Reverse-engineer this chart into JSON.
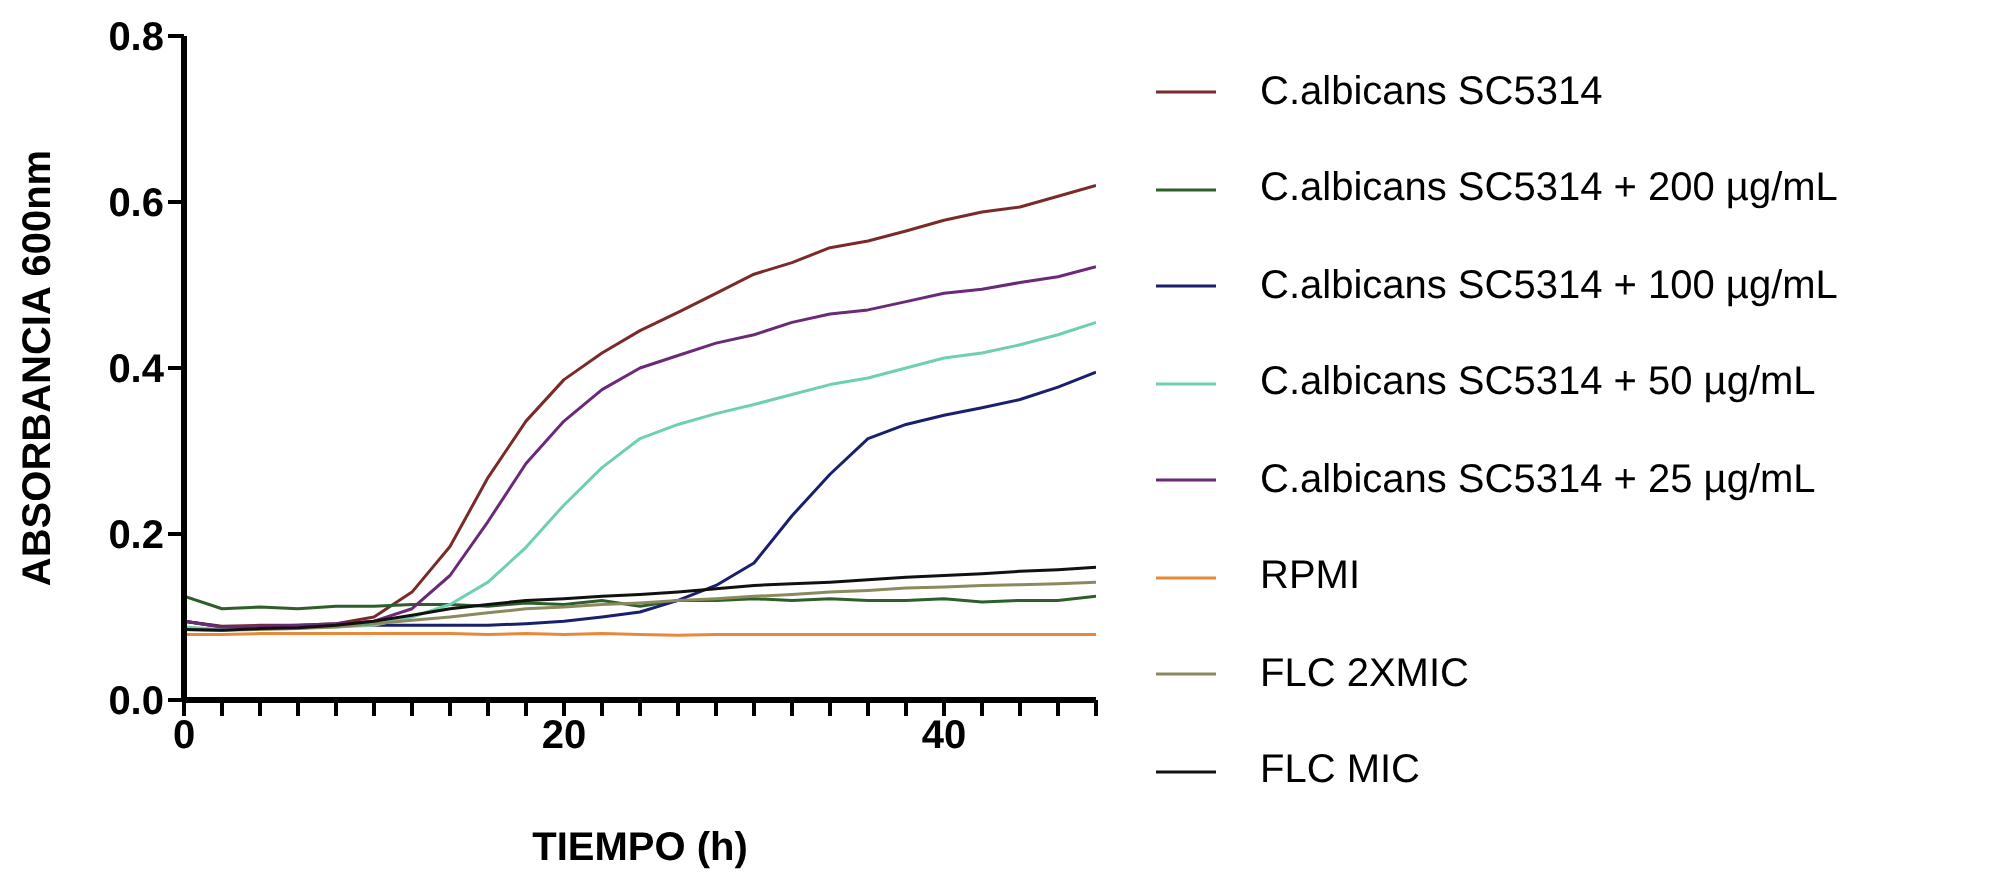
{
  "chart_data": {
    "type": "line",
    "xlabel": "TIEMPO (h)",
    "ylabel": "ABSORBANCIA 600nm",
    "x": [
      0,
      2,
      4,
      6,
      8,
      10,
      12,
      14,
      16,
      18,
      20,
      22,
      24,
      26,
      28,
      30,
      32,
      34,
      36,
      38,
      40,
      42,
      44,
      46,
      48
    ],
    "xlim": [
      0,
      48
    ],
    "ylim": [
      0,
      0.8
    ],
    "xticks": [
      0,
      {
        "value": 2,
        "label": null
      },
      {
        "value": 4,
        "label": null
      },
      {
        "value": 6,
        "label": null
      },
      {
        "value": 8,
        "label": null
      },
      {
        "value": 10,
        "label": null
      },
      {
        "value": 12,
        "label": null
      },
      {
        "value": 14,
        "label": null
      },
      {
        "value": 16,
        "label": null
      },
      {
        "value": 18,
        "label": null
      },
      20,
      {
        "value": 22,
        "label": null
      },
      {
        "value": 24,
        "label": null
      },
      {
        "value": 26,
        "label": null
      },
      {
        "value": 28,
        "label": null
      },
      {
        "value": 30,
        "label": null
      },
      {
        "value": 32,
        "label": null
      },
      {
        "value": 34,
        "label": null
      },
      {
        "value": 36,
        "label": null
      },
      {
        "value": 38,
        "label": null
      },
      40,
      {
        "value": 42,
        "label": null
      },
      {
        "value": 44,
        "label": null
      },
      {
        "value": 46,
        "label": null
      },
      {
        "value": 48,
        "label": null
      }
    ],
    "yticks": [
      {
        "value": 0,
        "label": "0.0"
      },
      0.2,
      0.4,
      0.6,
      0.8
    ],
    "grid": false,
    "legend": "right",
    "marker": "none",
    "line_style": "solid",
    "series": [
      {
        "name": "C.albicans SC5314",
        "color": "#7b2a2a",
        "values": [
          0.095,
          0.089,
          0.09,
          0.09,
          0.092,
          0.1,
          0.13,
          0.185,
          0.268,
          0.336,
          0.386,
          0.418,
          0.445,
          0.467,
          0.49,
          0.513,
          0.527,
          0.545,
          0.553,
          0.565,
          0.578,
          0.588,
          0.594,
          0.607,
          0.62
        ]
      },
      {
        "name": "C.albicans SC5314 + 200 µg/mL",
        "color": "#2e5e2a",
        "values": [
          0.125,
          0.11,
          0.112,
          0.11,
          0.113,
          0.113,
          0.115,
          0.115,
          0.113,
          0.117,
          0.115,
          0.12,
          0.113,
          0.12,
          0.12,
          0.122,
          0.12,
          0.122,
          0.12,
          0.12,
          0.122,
          0.118,
          0.12,
          0.12,
          0.125
        ]
      },
      {
        "name": "C.albicans SC5314 + 100 µg/mL",
        "color": "#1a1f6e",
        "values": [
          0.095,
          0.088,
          0.088,
          0.089,
          0.09,
          0.09,
          0.09,
          0.09,
          0.09,
          0.092,
          0.095,
          0.1,
          0.106,
          0.12,
          0.138,
          0.165,
          0.222,
          0.272,
          0.315,
          0.332,
          0.343,
          0.352,
          0.362,
          0.377,
          0.395
        ]
      },
      {
        "name": "C.albicans SC5314 + 50 µg/mL",
        "color": "#6fcfb0",
        "values": [
          0.088,
          0.085,
          0.086,
          0.087,
          0.088,
          0.09,
          0.1,
          0.115,
          0.142,
          0.184,
          0.235,
          0.28,
          0.315,
          0.332,
          0.345,
          0.356,
          0.368,
          0.38,
          0.388,
          0.4,
          0.412,
          0.418,
          0.428,
          0.44,
          0.455
        ]
      },
      {
        "name": "C.albicans SC5314 + 25 µg/mL",
        "color": "#6a2a78",
        "values": [
          0.095,
          0.088,
          0.089,
          0.09,
          0.092,
          0.095,
          0.11,
          0.15,
          0.215,
          0.285,
          0.336,
          0.374,
          0.4,
          0.415,
          0.43,
          0.44,
          0.455,
          0.465,
          0.47,
          0.48,
          0.49,
          0.495,
          0.503,
          0.51,
          0.522
        ]
      },
      {
        "name": "RPMI",
        "color": "#e8883a",
        "values": [
          0.079,
          0.079,
          0.08,
          0.08,
          0.08,
          0.08,
          0.08,
          0.08,
          0.079,
          0.08,
          0.079,
          0.08,
          0.079,
          0.078,
          0.079,
          0.079,
          0.079,
          0.079,
          0.079,
          0.079,
          0.079,
          0.079,
          0.079,
          0.079,
          0.079
        ]
      },
      {
        "name": "FLC 2XMIC",
        "color": "#8b8a5e",
        "values": [
          0.085,
          0.084,
          0.085,
          0.086,
          0.088,
          0.092,
          0.096,
          0.1,
          0.105,
          0.11,
          0.112,
          0.115,
          0.117,
          0.12,
          0.122,
          0.125,
          0.127,
          0.13,
          0.132,
          0.135,
          0.136,
          0.138,
          0.139,
          0.14,
          0.142
        ]
      },
      {
        "name": "FLC MIC",
        "color": "#111111",
        "values": [
          0.085,
          0.084,
          0.086,
          0.087,
          0.09,
          0.095,
          0.102,
          0.11,
          0.115,
          0.12,
          0.122,
          0.125,
          0.127,
          0.13,
          0.134,
          0.138,
          0.14,
          0.142,
          0.145,
          0.148,
          0.15,
          0.152,
          0.155,
          0.157,
          0.16
        ]
      }
    ]
  }
}
